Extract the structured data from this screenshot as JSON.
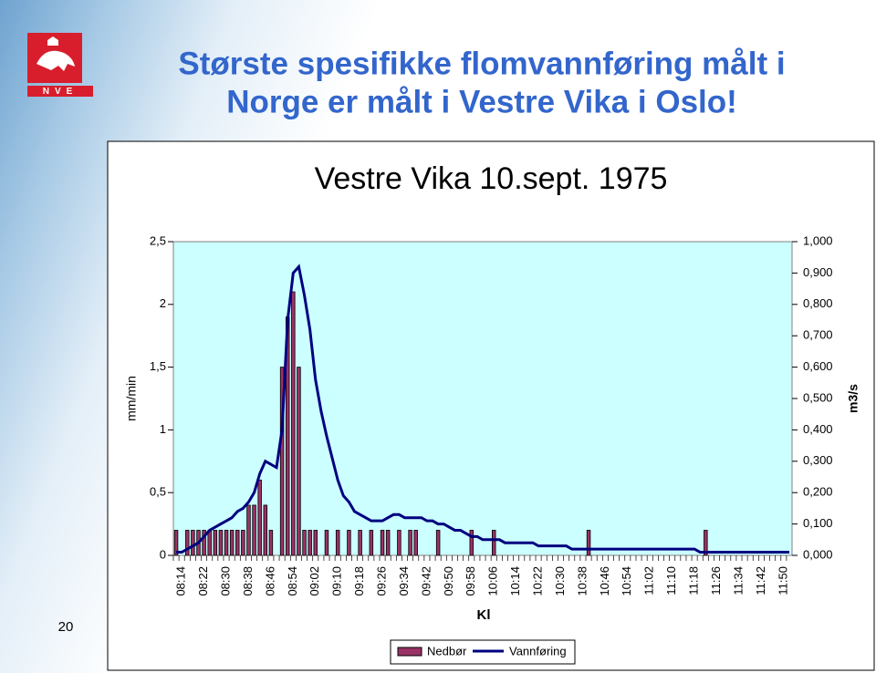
{
  "logo_text": "NVE",
  "header": {
    "title_lines": [
      "Største spesifikke flomvannføring målt i",
      "Norge er målt i Vestre Vika i Oslo!"
    ]
  },
  "page_number": "20",
  "chart_data": {
    "type": "bar",
    "title": "Vestre Vika 10.sept. 1975",
    "x_label": "Kl",
    "y_label": "mm/min",
    "y2_label": "m3/s",
    "categories": [
      null,
      "08:14",
      null,
      null,
      null,
      "08:22",
      null,
      null,
      null,
      "08:30",
      null,
      null,
      null,
      "08:38",
      null,
      null,
      null,
      "08:46",
      null,
      null,
      null,
      "08:54",
      null,
      null,
      null,
      "09:02",
      null,
      null,
      null,
      "09:10",
      null,
      null,
      null,
      "09:18",
      null,
      null,
      null,
      "09:26",
      null,
      null,
      null,
      "09:34",
      null,
      null,
      null,
      "09:42",
      null,
      null,
      null,
      "09:50",
      null,
      null,
      null,
      "09:58",
      null,
      null,
      null,
      "10:06",
      null,
      null,
      null,
      "10:14",
      null,
      null,
      null,
      "10:22",
      null,
      null,
      null,
      "10:30",
      null,
      null,
      null,
      "10:38",
      null,
      null,
      null,
      "10:46",
      null,
      null,
      null,
      "10:54",
      null,
      null,
      null,
      "11:02",
      null,
      null,
      null,
      "11:10",
      null,
      null,
      null,
      "11:18",
      null,
      null,
      null,
      "11:26",
      null,
      null,
      null,
      "11:34",
      null,
      null,
      null,
      "11:42",
      null,
      null,
      null,
      "11:50",
      null
    ],
    "series": [
      {
        "name": "Nedbør",
        "type": "bar",
        "color": "#993366",
        "values": [
          0.2,
          0,
          0.2,
          0.2,
          0.2,
          0.2,
          0.2,
          0.2,
          0.2,
          0.2,
          0.2,
          0.2,
          0.2,
          0.4,
          0.4,
          0.6,
          0.4,
          0.2,
          0,
          1.5,
          1.9,
          2.1,
          1.5,
          0.2,
          0.2,
          0.2,
          0,
          0.2,
          0,
          0.2,
          0,
          0.2,
          0,
          0.2,
          0,
          0.2,
          0,
          0.2,
          0.2,
          0,
          0.2,
          0,
          0.2,
          0.2,
          0,
          0,
          0,
          0.2,
          0,
          0,
          0,
          0,
          0,
          0.2,
          0,
          0,
          0,
          0.2,
          0,
          0,
          0,
          0,
          0,
          0,
          0,
          0,
          0,
          0,
          0,
          0,
          0,
          0,
          0,
          0,
          0.2,
          0,
          0,
          0,
          0,
          0,
          0,
          0,
          0,
          0,
          0,
          0,
          0,
          0,
          0,
          0,
          0,
          0,
          0,
          0,
          0,
          0.2,
          0,
          0,
          0,
          0,
          0,
          0,
          0,
          0,
          0,
          0,
          0,
          0,
          0,
          0,
          0
        ]
      },
      {
        "name": "Vannføring",
        "type": "line",
        "axis": "y2",
        "color": "#000080",
        "values": [
          0.01,
          0.01,
          0.02,
          0.03,
          0.04,
          0.06,
          0.08,
          0.09,
          0.1,
          0.11,
          0.12,
          0.14,
          0.15,
          0.17,
          0.2,
          0.26,
          0.3,
          0.29,
          0.28,
          0.4,
          0.75,
          0.9,
          0.92,
          0.83,
          0.72,
          0.56,
          0.46,
          0.38,
          0.31,
          0.24,
          0.19,
          0.17,
          0.14,
          0.13,
          0.12,
          0.11,
          0.11,
          0.11,
          0.12,
          0.13,
          0.13,
          0.12,
          0.12,
          0.12,
          0.12,
          0.11,
          0.11,
          0.1,
          0.1,
          0.09,
          0.08,
          0.08,
          0.07,
          0.06,
          0.06,
          0.05,
          0.05,
          0.05,
          0.05,
          0.04,
          0.04,
          0.04,
          0.04,
          0.04,
          0.04,
          0.03,
          0.03,
          0.03,
          0.03,
          0.03,
          0.03,
          0.02,
          0.02,
          0.02,
          0.02,
          0.02,
          0.02,
          0.02,
          0.02,
          0.02,
          0.02,
          0.02,
          0.02,
          0.02,
          0.02,
          0.02,
          0.02,
          0.02,
          0.02,
          0.02,
          0.02,
          0.02,
          0.02,
          0.02,
          0.01,
          0.01,
          0.01,
          0.01,
          0.01,
          0.01,
          0.01,
          0.01,
          0.01,
          0.01,
          0.01,
          0.01,
          0.01,
          0.01,
          0.01,
          0.01,
          0.01
        ]
      }
    ],
    "ylim": [
      0,
      2.5
    ],
    "yticks": [
      0,
      {
        "value": 0.5,
        "label": "0,5"
      },
      1,
      {
        "value": 1.5,
        "label": "1,5"
      },
      2,
      {
        "value": 2.5,
        "label": "2,5"
      }
    ],
    "y2lim": [
      0,
      1
    ],
    "y2ticks": [
      {
        "value": 0,
        "label": "0,000"
      },
      {
        "value": 0.1,
        "label": "0,100"
      },
      {
        "value": 0.2,
        "label": "0,200"
      },
      {
        "value": 0.3,
        "label": "0,300"
      },
      {
        "value": 0.4,
        "label": "0,400"
      },
      {
        "value": 0.5,
        "label": "0,500"
      },
      {
        "value": 0.6,
        "label": "0,600"
      },
      {
        "value": 0.7,
        "label": "0,700"
      },
      {
        "value": 0.8,
        "label": "0,800"
      },
      {
        "value": 0.9,
        "label": "0,900"
      },
      {
        "value": 1,
        "label": "1,000"
      }
    ],
    "plot_background": "#ccffff",
    "legend": "bottom"
  }
}
